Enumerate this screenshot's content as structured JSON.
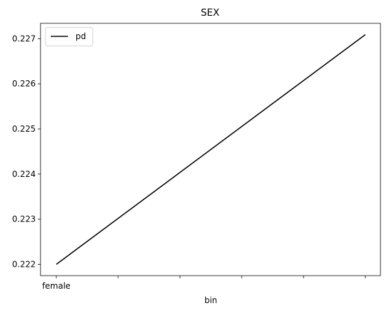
{
  "chart_data": {
    "type": "line",
    "title": "SEX",
    "xlabel": "bin",
    "ylabel": "",
    "categories": [
      "female",
      "",
      "",
      "",
      "",
      ""
    ],
    "series": [
      {
        "name": "pd",
        "values": [
          0.222,
          0.223018,
          0.224036,
          0.225054,
          0.226072,
          0.22709
        ],
        "color": "#000000"
      }
    ],
    "ylim": [
      0.22175,
      0.22734
    ],
    "y_ticks": [
      0.222,
      0.223,
      0.224,
      0.225,
      0.226,
      0.227
    ],
    "y_tick_labels": [
      "0.222",
      "0.223",
      "0.224",
      "0.225",
      "0.226",
      "0.227"
    ],
    "grid": false,
    "legend_position": "top-left"
  }
}
